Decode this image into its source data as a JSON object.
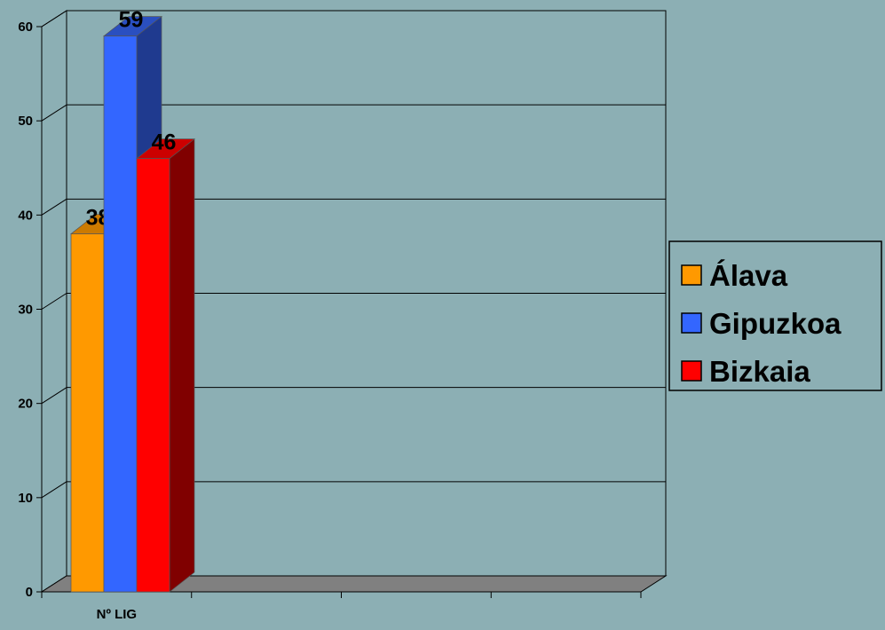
{
  "chart_data": {
    "type": "bar",
    "categories": [
      "Nº LIG"
    ],
    "series": [
      {
        "name": "Álava",
        "values": [
          38
        ],
        "color": "#FF9900",
        "top_color": "#CC7A00",
        "side_color": "#B36B00"
      },
      {
        "name": "Gipuzkoa",
        "values": [
          59
        ],
        "color": "#3366FF",
        "top_color": "#2A4FC0",
        "side_color": "#1F3A8F"
      },
      {
        "name": "Bizkaia",
        "values": [
          46
        ],
        "color": "#FF0000",
        "top_color": "#CC0000",
        "side_color": "#800000"
      }
    ],
    "yticks": [
      "0",
      "10",
      "20",
      "30",
      "40",
      "50",
      "60"
    ],
    "ylim": [
      0,
      60
    ],
    "grid": true,
    "legend_position": "right",
    "data_labels": true,
    "style": "3d-clustered-column",
    "background": "#8CAFB4",
    "floor_color": "#808080"
  }
}
